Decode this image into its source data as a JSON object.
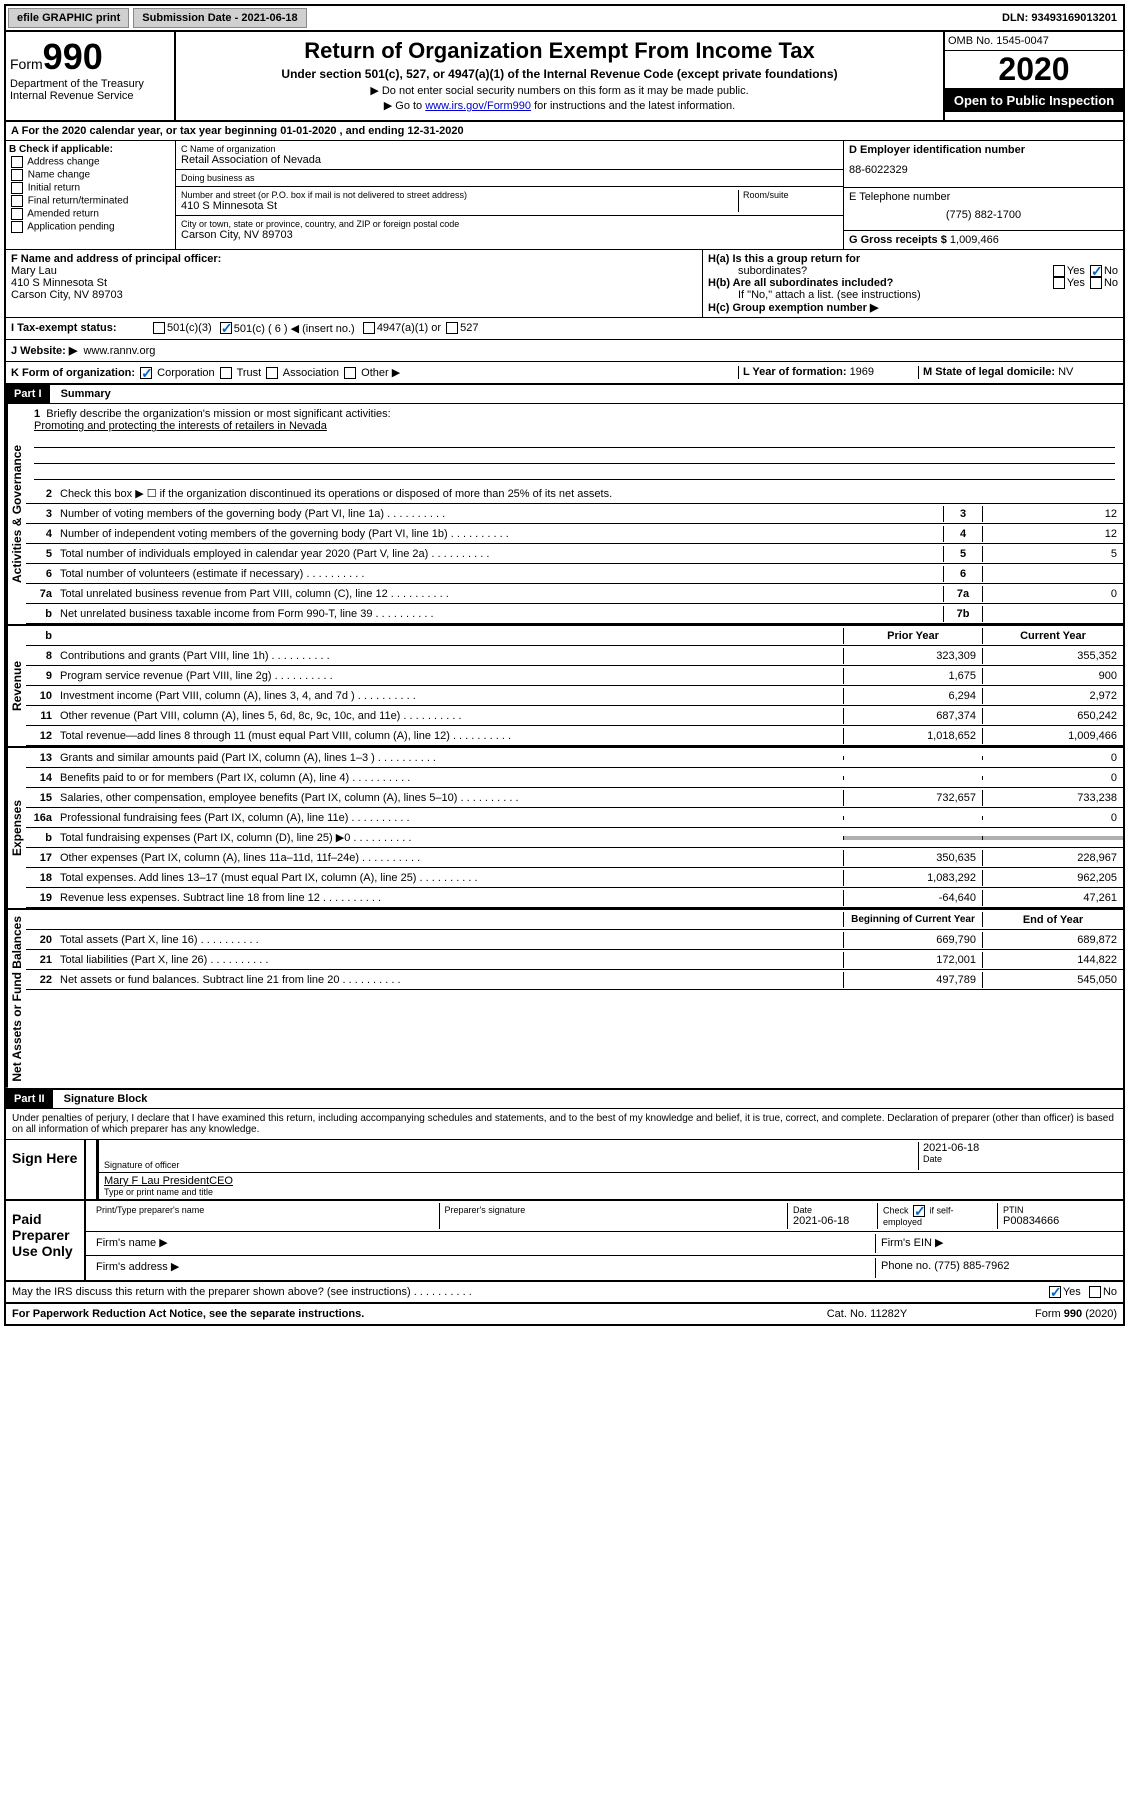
{
  "topbar": {
    "efile": "efile GRAPHIC print",
    "submission_label": "Submission Date - ",
    "submission_date": "2021-06-18",
    "dln_label": "DLN: ",
    "dln": "93493169013201"
  },
  "header": {
    "form_label": "Form",
    "form_num": "990",
    "dept1": "Department of the Treasury",
    "dept2": "Internal Revenue Service",
    "title": "Return of Organization Exempt From Income Tax",
    "subtitle": "Under section 501(c), 527, or 4947(a)(1) of the Internal Revenue Code (except private foundations)",
    "note1": "▶ Do not enter social security numbers on this form as it may be made public.",
    "note2_pre": "▶ Go to ",
    "note2_link": "www.irs.gov/Form990",
    "note2_post": " for instructions and the latest information.",
    "omb": "OMB No. 1545-0047",
    "year": "2020",
    "inspection": "Open to Public Inspection"
  },
  "line_a": "For the 2020 calendar year, or tax year beginning 01-01-2020   , and ending 12-31-2020",
  "box_b": {
    "title": "B Check if applicable:",
    "opts": [
      "Address change",
      "Name change",
      "Initial return",
      "Final return/terminated",
      "Amended return",
      "Application pending"
    ]
  },
  "box_c": {
    "name_label": "C Name of organization",
    "name": "Retail Association of Nevada",
    "dba_label": "Doing business as",
    "dba": "",
    "street_label": "Number and street (or P.O. box if mail is not delivered to street address)",
    "room_label": "Room/suite",
    "street": "410 S Minnesota St",
    "city_label": "City or town, state or province, country, and ZIP or foreign postal code",
    "city": "Carson City, NV  89703"
  },
  "box_d": {
    "ein_label": "D Employer identification number",
    "ein": "88-6022329",
    "phone_label": "E Telephone number",
    "phone": "(775) 882-1700",
    "gross_label": "G Gross receipts $ ",
    "gross": "1,009,466"
  },
  "box_f": {
    "label": "F Name and address of principal officer:",
    "name": "Mary Lau",
    "addr1": "410 S Minnesota St",
    "addr2": "Carson City, NV  89703"
  },
  "box_h": {
    "ha_label": "H(a)  Is this a group return for",
    "ha_sub": "subordinates?",
    "hb_label": "H(b)  Are all subordinates included?",
    "hb_note": "If \"No,\" attach a list. (see instructions)",
    "hc_label": "H(c)  Group exemption number ▶",
    "yes": "Yes",
    "no": "No"
  },
  "box_i": {
    "label": "I  Tax-exempt status:",
    "o1": "501(c)(3)",
    "o2": "501(c) ( 6 ) ◀ (insert no.)",
    "o3": "4947(a)(1) or",
    "o4": "527"
  },
  "box_j": {
    "label": "J  Website: ▶",
    "url": "www.rannv.org"
  },
  "box_k": {
    "label": "K Form of organization:",
    "o1": "Corporation",
    "o2": "Trust",
    "o3": "Association",
    "o4": "Other ▶"
  },
  "box_l": {
    "label": "L Year of formation: ",
    "val": "1969"
  },
  "box_m": {
    "label": "M State of legal domicile: ",
    "val": "NV"
  },
  "part1": {
    "header": "Part I",
    "title": "Summary",
    "line1_label": "Briefly describe the organization's mission or most significant activities:",
    "line1_text": "Promoting and protecting the interests of retailers in Nevada",
    "line2": "Check this box ▶ ☐  if the organization discontinued its operations or disposed of more than 25% of its net assets.",
    "vert_gov": "Activities & Governance",
    "vert_rev": "Revenue",
    "vert_exp": "Expenses",
    "vert_net": "Net Assets or Fund Balances",
    "prior_header": "Prior Year",
    "current_header": "Current Year",
    "begin_header": "Beginning of Current Year",
    "end_header": "End of Year",
    "rows_gov": [
      {
        "n": "3",
        "t": "Number of voting members of the governing body (Part VI, line 1a)",
        "box": "3",
        "v": "12"
      },
      {
        "n": "4",
        "t": "Number of independent voting members of the governing body (Part VI, line 1b)",
        "box": "4",
        "v": "12"
      },
      {
        "n": "5",
        "t": "Total number of individuals employed in calendar year 2020 (Part V, line 2a)",
        "box": "5",
        "v": "5"
      },
      {
        "n": "6",
        "t": "Total number of volunteers (estimate if necessary)",
        "box": "6",
        "v": ""
      },
      {
        "n": "7a",
        "t": "Total unrelated business revenue from Part VIII, column (C), line 12",
        "box": "7a",
        "v": "0"
      },
      {
        "n": "b",
        "t": "Net unrelated business taxable income from Form 990-T, line 39",
        "box": "7b",
        "v": ""
      }
    ],
    "rows_rev": [
      {
        "n": "8",
        "t": "Contributions and grants (Part VIII, line 1h)",
        "p": "323,309",
        "c": "355,352"
      },
      {
        "n": "9",
        "t": "Program service revenue (Part VIII, line 2g)",
        "p": "1,675",
        "c": "900"
      },
      {
        "n": "10",
        "t": "Investment income (Part VIII, column (A), lines 3, 4, and 7d )",
        "p": "6,294",
        "c": "2,972"
      },
      {
        "n": "11",
        "t": "Other revenue (Part VIII, column (A), lines 5, 6d, 8c, 9c, 10c, and 11e)",
        "p": "687,374",
        "c": "650,242"
      },
      {
        "n": "12",
        "t": "Total revenue—add lines 8 through 11 (must equal Part VIII, column (A), line 12)",
        "p": "1,018,652",
        "c": "1,009,466"
      }
    ],
    "rows_exp": [
      {
        "n": "13",
        "t": "Grants and similar amounts paid (Part IX, column (A), lines 1–3 )",
        "p": "",
        "c": "0"
      },
      {
        "n": "14",
        "t": "Benefits paid to or for members (Part IX, column (A), line 4)",
        "p": "",
        "c": "0"
      },
      {
        "n": "15",
        "t": "Salaries, other compensation, employee benefits (Part IX, column (A), lines 5–10)",
        "p": "732,657",
        "c": "733,238"
      },
      {
        "n": "16a",
        "t": "Professional fundraising fees (Part IX, column (A), line 11e)",
        "p": "",
        "c": "0"
      },
      {
        "n": "b",
        "t": "Total fundraising expenses (Part IX, column (D), line 25) ▶0",
        "p": "shaded",
        "c": "shaded"
      },
      {
        "n": "17",
        "t": "Other expenses (Part IX, column (A), lines 11a–11d, 11f–24e)",
        "p": "350,635",
        "c": "228,967"
      },
      {
        "n": "18",
        "t": "Total expenses. Add lines 13–17 (must equal Part IX, column (A), line 25)",
        "p": "1,083,292",
        "c": "962,205"
      },
      {
        "n": "19",
        "t": "Revenue less expenses. Subtract line 18 from line 12",
        "p": "-64,640",
        "c": "47,261"
      }
    ],
    "rows_net": [
      {
        "n": "20",
        "t": "Total assets (Part X, line 16)",
        "p": "669,790",
        "c": "689,872"
      },
      {
        "n": "21",
        "t": "Total liabilities (Part X, line 26)",
        "p": "172,001",
        "c": "144,822"
      },
      {
        "n": "22",
        "t": "Net assets or fund balances. Subtract line 21 from line 20",
        "p": "497,789",
        "c": "545,050"
      }
    ]
  },
  "part2": {
    "header": "Part II",
    "title": "Signature Block",
    "perjury": "Under penalties of perjury, I declare that I have examined this return, including accompanying schedules and statements, and to the best of my knowledge and belief, it is true, correct, and complete. Declaration of preparer (other than officer) is based on all information of which preparer has any knowledge."
  },
  "sign": {
    "label": "Sign Here",
    "sig_label": "Signature of officer",
    "date_label": "Date",
    "date": "2021-06-18",
    "name": "Mary F Lau  PresidentCEO",
    "name_label": "Type or print name and title"
  },
  "preparer": {
    "label": "Paid Preparer Use Only",
    "print_label": "Print/Type preparer's name",
    "sig_label": "Preparer's signature",
    "date_label": "Date",
    "date": "2021-06-18",
    "check_label": "Check ☑ if self-employed",
    "ptin_label": "PTIN",
    "ptin": "P00834666",
    "firm_name_label": "Firm's name    ▶",
    "firm_ein_label": "Firm's EIN ▶",
    "firm_addr_label": "Firm's address ▶",
    "phone_label": "Phone no. ",
    "phone": "(775) 885-7962"
  },
  "footer": {
    "discuss": "May the IRS discuss this return with the preparer shown above? (see instructions)",
    "yes": "Yes",
    "no": "No",
    "paperwork": "For Paperwork Reduction Act Notice, see the separate instructions.",
    "catno": "Cat. No. 11282Y",
    "formref": "Form 990 (2020)"
  }
}
